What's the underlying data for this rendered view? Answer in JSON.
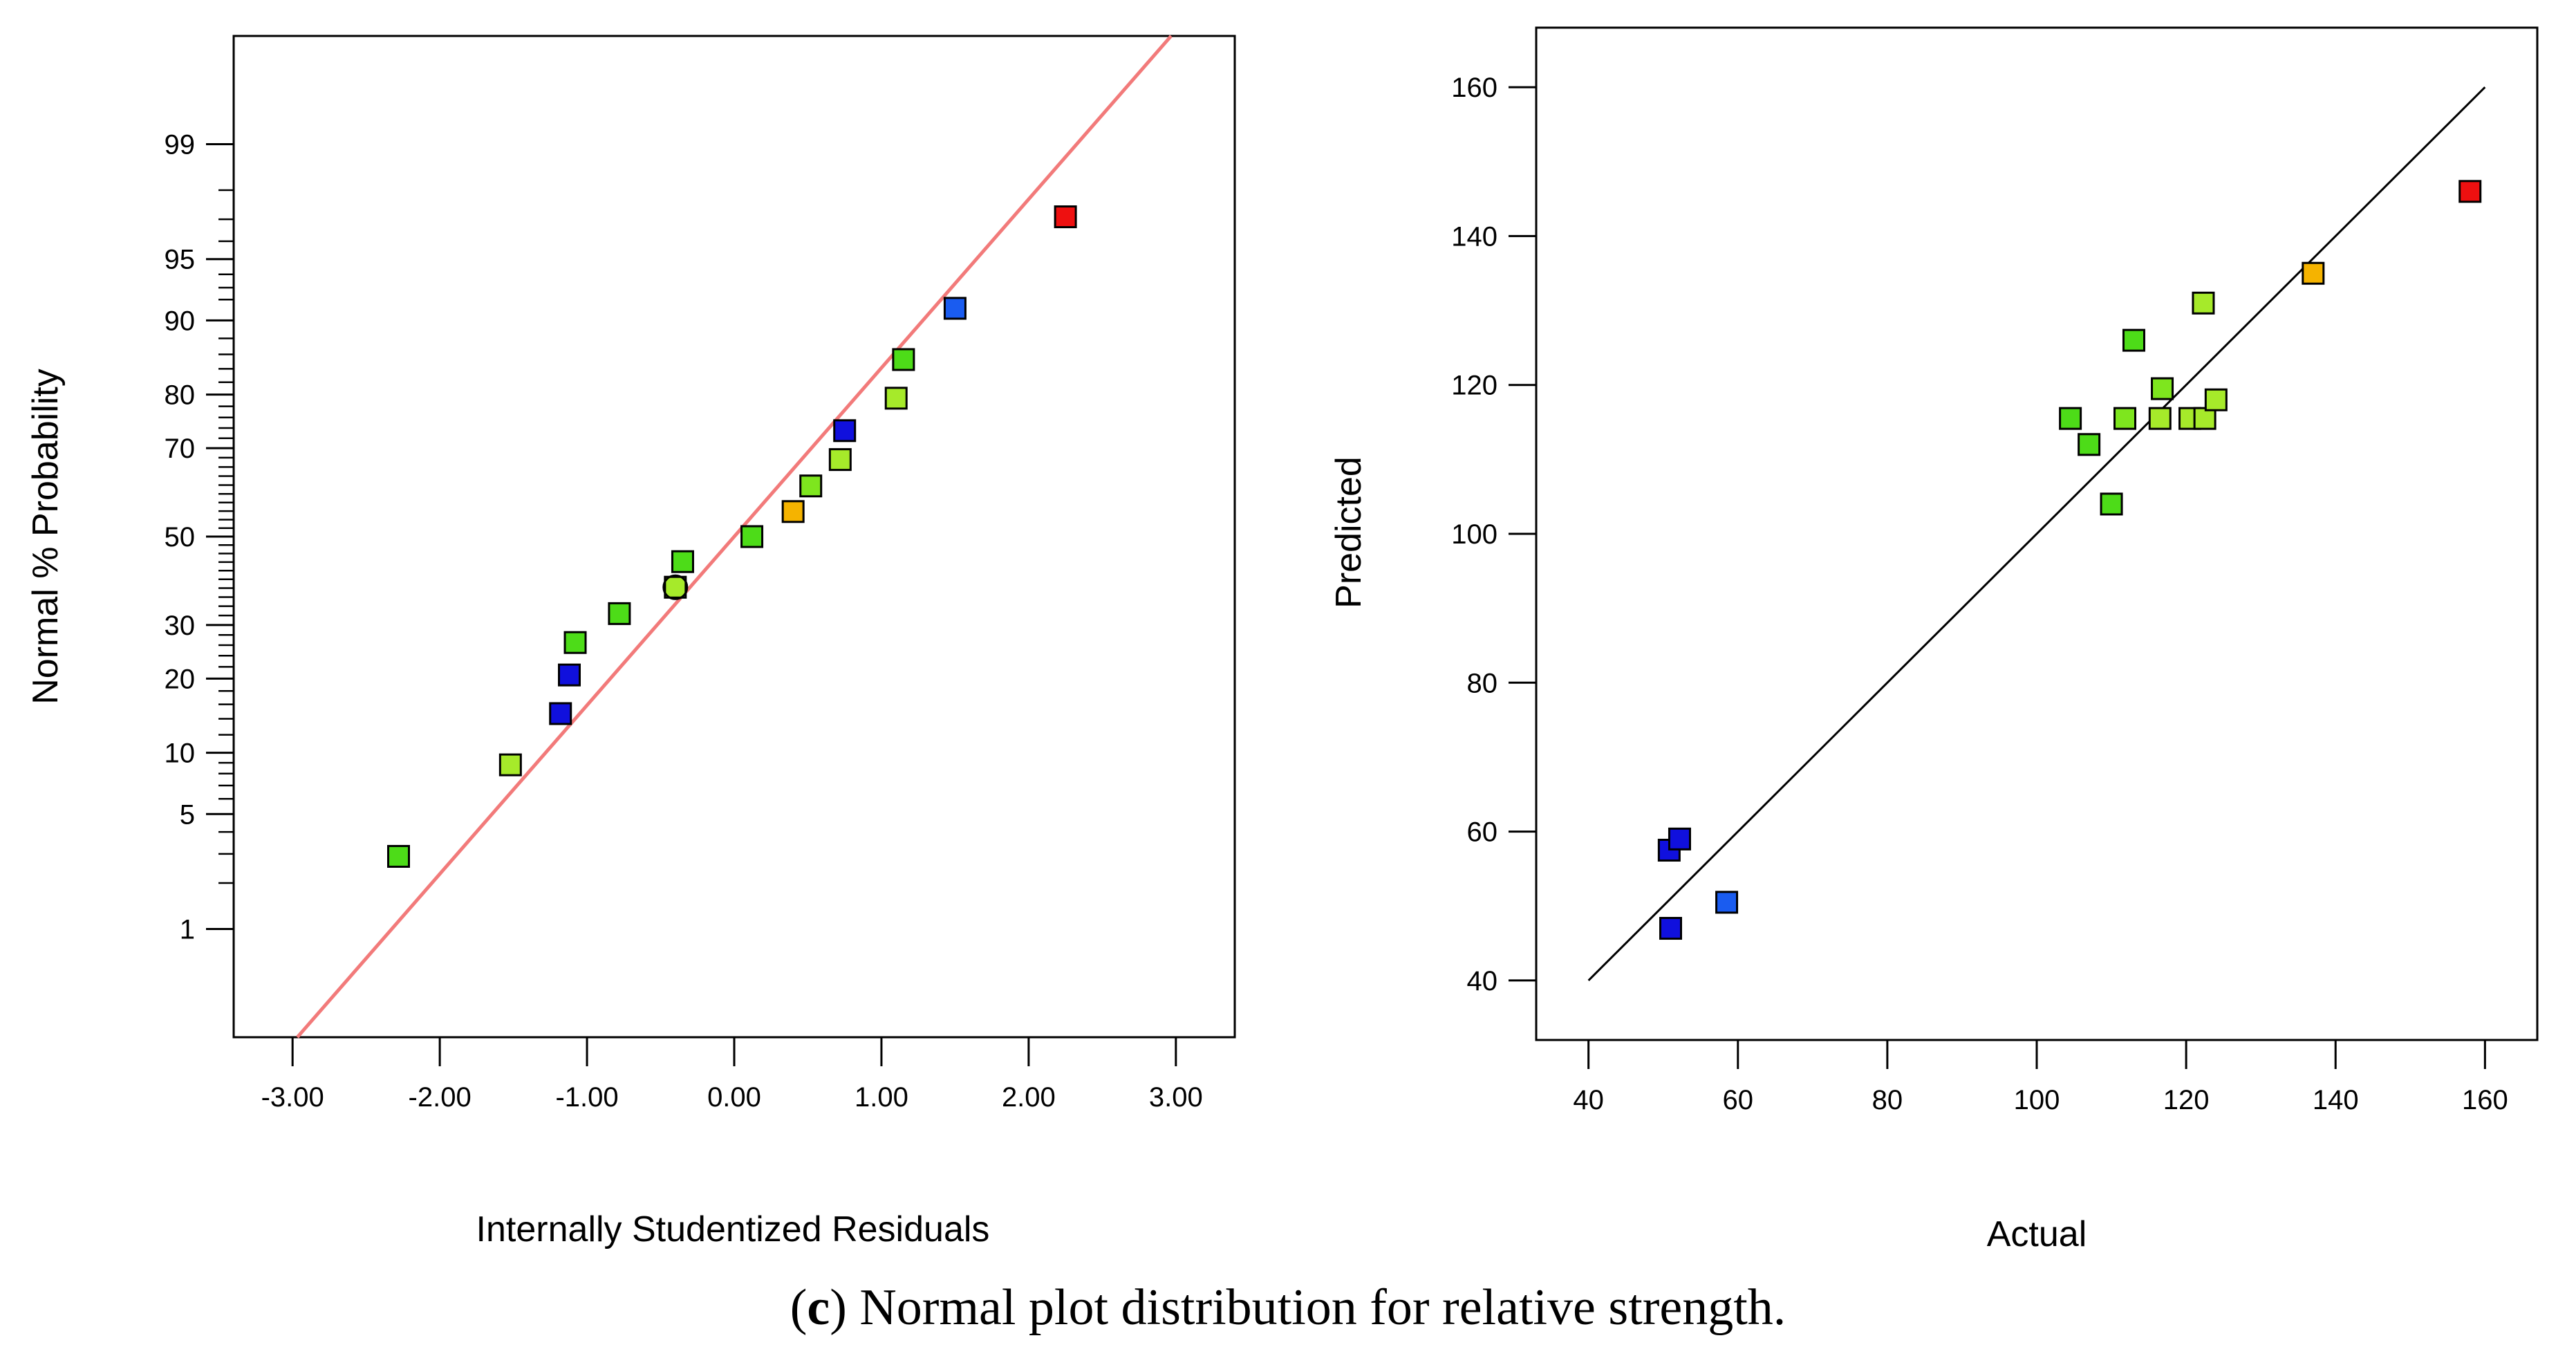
{
  "caption": {
    "prefix": "(",
    "letter": "c",
    "suffix": ")",
    "text": "Normal plot distribution for relative strength."
  },
  "chart_data": [
    {
      "type": "scatter",
      "title": "",
      "xlabel": "Internally Studentized Residuals",
      "ylabel": "Normal % Probability",
      "xlim": [
        -3.4,
        3.4
      ],
      "x_ticks": [
        -3,
        -2,
        -1,
        0,
        1,
        2,
        3
      ],
      "x_tick_labels": [
        "-3.00",
        "-2.00",
        "-1.00",
        "0.00",
        "1.00",
        "2.00",
        "3.00"
      ],
      "y_scale": "normal-probability",
      "ylim_percent": [
        0.15,
        99.85
      ],
      "y_labeled_ticks": [
        1,
        5,
        10,
        20,
        30,
        50,
        70,
        80,
        90,
        95,
        99
      ],
      "y_tick_labels": [
        "1",
        "5",
        "10",
        "20",
        "30",
        "50",
        "70",
        "80",
        "90",
        "95",
        "99"
      ],
      "y_minor_ticks": [
        2,
        3,
        4,
        6,
        7,
        8,
        9,
        12,
        14,
        16,
        18,
        22,
        24,
        26,
        28,
        32,
        34,
        36,
        38,
        40,
        42,
        44,
        46,
        48,
        52,
        54,
        56,
        58,
        60,
        62,
        64,
        66,
        68,
        72,
        74,
        76,
        78,
        82,
        84,
        86,
        88,
        92,
        93,
        94,
        96,
        97,
        98
      ],
      "reference_line": {
        "slope_z_per_residual": 1.0,
        "intercept_z": 0.0,
        "color": "#f27a7a"
      },
      "points": [
        {
          "x": -2.28,
          "p": 2.9,
          "color": "#4ddc18"
        },
        {
          "x": -1.52,
          "p": 8.8,
          "color": "#a6ea2a"
        },
        {
          "x": -1.18,
          "p": 14.7,
          "color": "#1010dd"
        },
        {
          "x": -1.12,
          "p": 20.6,
          "color": "#1010dd"
        },
        {
          "x": -1.08,
          "p": 26.5,
          "color": "#4ddc18"
        },
        {
          "x": -0.78,
          "p": 32.4,
          "color": "#4ddc18"
        },
        {
          "x": -0.4,
          "p": 38.2,
          "color": "#a6ea2a",
          "marker": "square-circle"
        },
        {
          "x": -0.35,
          "p": 44.1,
          "color": "#4ddc18"
        },
        {
          "x": 0.12,
          "p": 50.0,
          "color": "#4ddc18"
        },
        {
          "x": 0.4,
          "p": 55.9,
          "color": "#f5b300"
        },
        {
          "x": 0.52,
          "p": 61.8,
          "color": "#7ee61e"
        },
        {
          "x": 0.72,
          "p": 67.6,
          "color": "#a6ea2a"
        },
        {
          "x": 0.75,
          "p": 73.5,
          "color": "#1010dd"
        },
        {
          "x": 1.1,
          "p": 79.4,
          "color": "#a6ea2a"
        },
        {
          "x": 1.15,
          "p": 85.3,
          "color": "#4ddc18"
        },
        {
          "x": 1.5,
          "p": 91.2,
          "color": "#1a5cf0"
        },
        {
          "x": 2.25,
          "p": 97.1,
          "color": "#ee1010"
        }
      ]
    },
    {
      "type": "scatter",
      "title": "",
      "xlabel": "Actual",
      "ylabel": "Predicted",
      "xlim": [
        33,
        167
      ],
      "ylim": [
        32,
        168
      ],
      "x_ticks": [
        40,
        60,
        80,
        100,
        120,
        140,
        160
      ],
      "y_ticks": [
        40,
        60,
        80,
        100,
        120,
        140,
        160
      ],
      "reference_line": {
        "from": [
          40,
          40
        ],
        "to": [
          160,
          160
        ],
        "color": "#000000"
      },
      "points": [
        {
          "x": 51.0,
          "y": 47.0,
          "color": "#1010dd"
        },
        {
          "x": 50.8,
          "y": 57.5,
          "color": "#1010dd"
        },
        {
          "x": 52.2,
          "y": 59.0,
          "color": "#1010dd"
        },
        {
          "x": 58.5,
          "y": 50.5,
          "color": "#1a5cf0"
        },
        {
          "x": 104.5,
          "y": 115.5,
          "color": "#4ddc18"
        },
        {
          "x": 107.0,
          "y": 112.0,
          "color": "#4ddc18"
        },
        {
          "x": 110.0,
          "y": 104.0,
          "color": "#4ddc18"
        },
        {
          "x": 111.8,
          "y": 115.5,
          "color": "#7ee61e"
        },
        {
          "x": 113.0,
          "y": 126.0,
          "color": "#4ddc18"
        },
        {
          "x": 116.5,
          "y": 115.5,
          "color": "#a6ea2a"
        },
        {
          "x": 116.8,
          "y": 119.5,
          "color": "#7ee61e"
        },
        {
          "x": 120.5,
          "y": 115.5,
          "color": "#a6ea2a"
        },
        {
          "x": 122.5,
          "y": 115.5,
          "color": "#a6ea2a"
        },
        {
          "x": 122.3,
          "y": 131.0,
          "color": "#a6ea2a"
        },
        {
          "x": 124.0,
          "y": 118.0,
          "color": "#a6ea2a"
        },
        {
          "x": 137.0,
          "y": 135.0,
          "color": "#f5b300"
        },
        {
          "x": 158.0,
          "y": 146.0,
          "color": "#ee1010"
        }
      ]
    }
  ]
}
